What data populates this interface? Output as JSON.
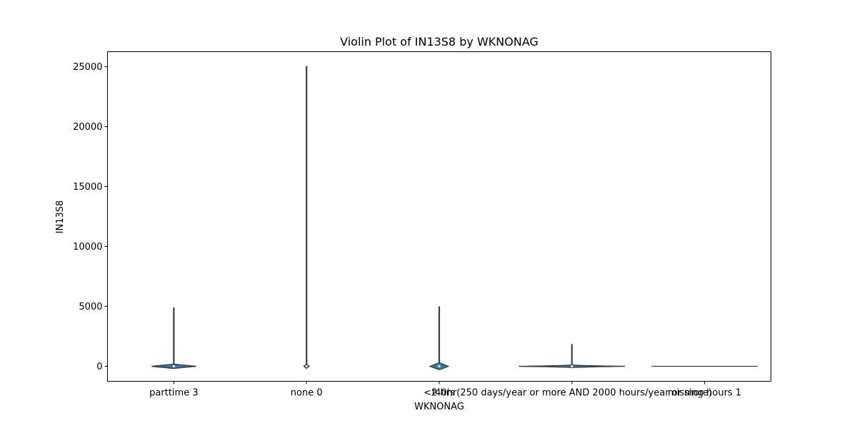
{
  "chart_data": {
    "type": "violin",
    "title": "Violin Plot of IN13S8 by WKNONAG",
    "xlabel": "WKNONAG",
    "ylabel": "IN13S8",
    "categories": [
      "parttime 3",
      "none 0",
      "<2 hrs",
      "f40hr(250 days/year or more AND 2000 hours/year or more)",
      "missing hours 1"
    ],
    "ylim": [
      -1250,
      26250
    ],
    "yticks": [
      0,
      5000,
      10000,
      15000,
      20000,
      25000
    ],
    "series": [
      {
        "category": "parttime 3",
        "min": 0,
        "max": 4850,
        "body_half_width": 0.42,
        "body_top": 120,
        "body_bottom": -120
      },
      {
        "category": "none 0",
        "min": 0,
        "max": 25000,
        "body_half_width": 0.05,
        "body_top": 120,
        "body_bottom": -120
      },
      {
        "category": "<2 hrs",
        "min": 0,
        "max": 4950,
        "body_half_width": 0.17,
        "body_top": 220,
        "body_bottom": -220
      },
      {
        "category": "f40hr(250 days/year or more AND 2000 hours/year or more)",
        "min": 0,
        "max": 1800,
        "body_half_width": 1.0,
        "body_top": 40,
        "body_bottom": -40
      },
      {
        "category": "missing hours 1",
        "min": 0,
        "max": 0,
        "body_half_width": 1.0,
        "body_top": 0,
        "body_bottom": 0
      }
    ],
    "colors": {
      "body": "#3a78a8",
      "outline": "#3d3d3d"
    },
    "grid": false,
    "legend": "none"
  }
}
